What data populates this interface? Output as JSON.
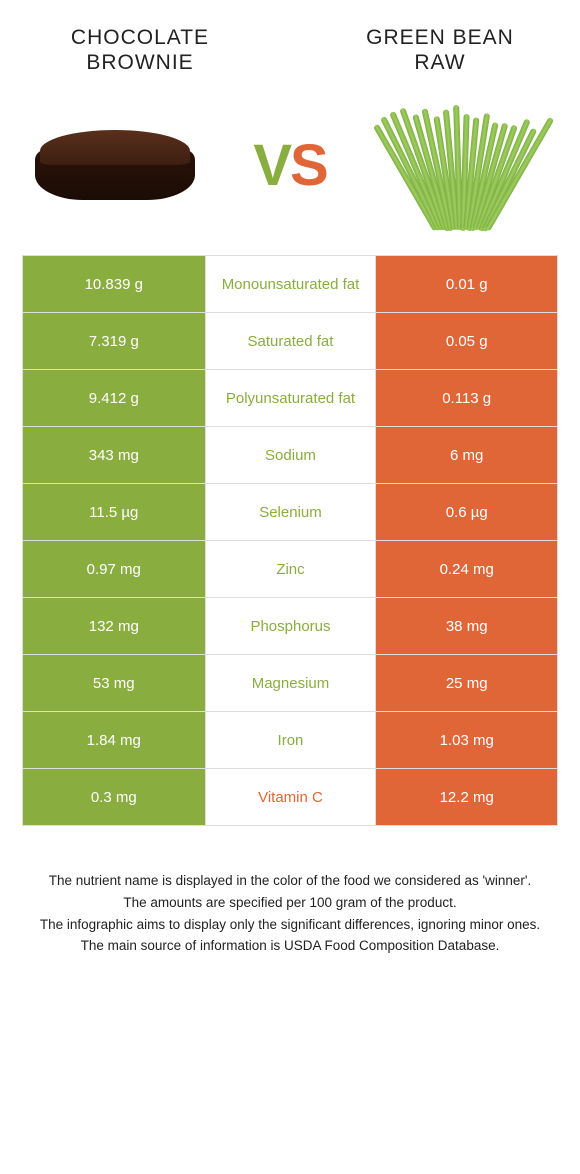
{
  "header": {
    "left_title_line1": "CHOCOLATE",
    "left_title_line2": "BROWNIE",
    "right_title_line1": "GREEN BEAN",
    "right_title_line2": "RAW",
    "vs_v": "V",
    "vs_s": "S"
  },
  "colors": {
    "left": "#8aad3f",
    "right": "#e06638",
    "border": "#dddddd",
    "text": "#222222"
  },
  "rows": [
    {
      "left": "10.839 g",
      "mid": "Monounsaturated fat",
      "right": "0.01 g",
      "winner": "left"
    },
    {
      "left": "7.319 g",
      "mid": "Saturated fat",
      "right": "0.05 g",
      "winner": "left"
    },
    {
      "left": "9.412 g",
      "mid": "Polyunsaturated fat",
      "right": "0.113 g",
      "winner": "left"
    },
    {
      "left": "343 mg",
      "mid": "Sodium",
      "right": "6 mg",
      "winner": "left"
    },
    {
      "left": "11.5 µg",
      "mid": "Selenium",
      "right": "0.6 µg",
      "winner": "left"
    },
    {
      "left": "0.97 mg",
      "mid": "Zinc",
      "right": "0.24 mg",
      "winner": "left"
    },
    {
      "left": "132 mg",
      "mid": "Phosphorus",
      "right": "38 mg",
      "winner": "left"
    },
    {
      "left": "53 mg",
      "mid": "Magnesium",
      "right": "25 mg",
      "winner": "left"
    },
    {
      "left": "1.84 mg",
      "mid": "Iron",
      "right": "1.03 mg",
      "winner": "left"
    },
    {
      "left": "0.3 mg",
      "mid": "Vitamin C",
      "right": "12.2 mg",
      "winner": "right"
    }
  ],
  "footnotes": [
    "The nutrient name is displayed in the color of the food we considered as 'winner'.",
    "The amounts are specified per 100 gram of the product.",
    "The infographic aims to display only the significant differences, ignoring minor ones.",
    "The main source of information is USDA Food Composition Database."
  ]
}
